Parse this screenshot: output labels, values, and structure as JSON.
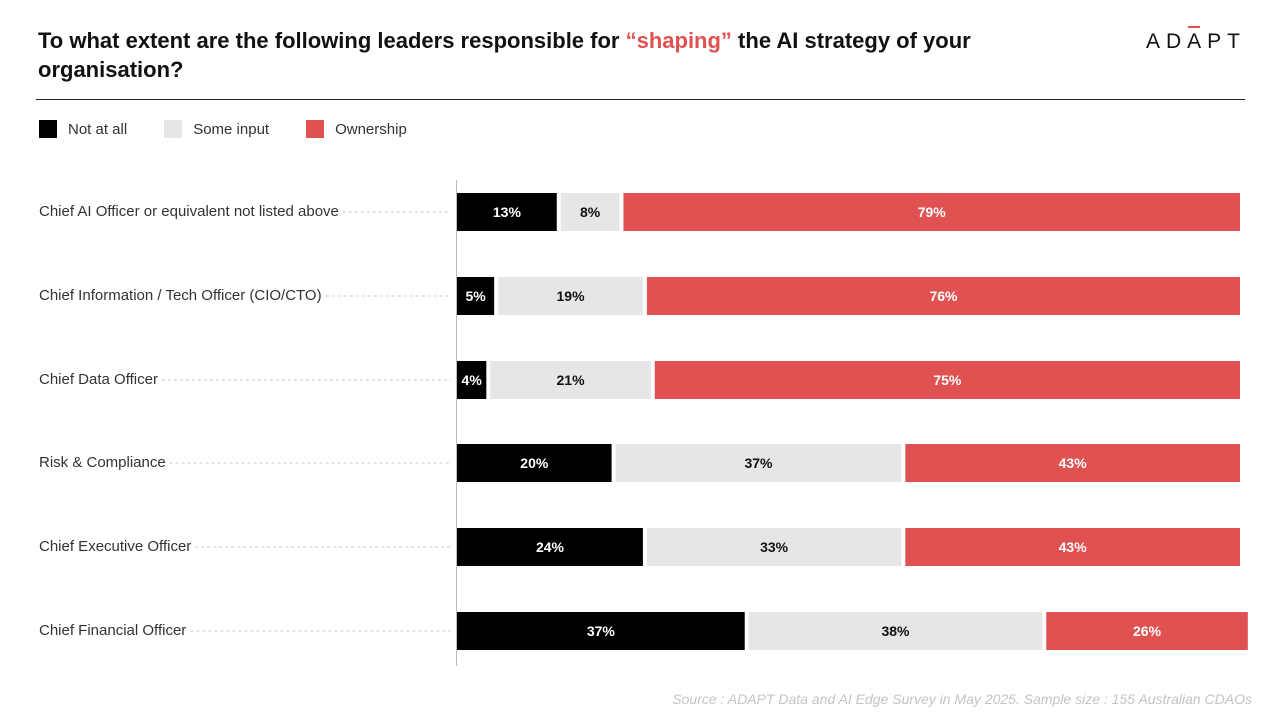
{
  "header": {
    "title_part1": "To what extent are the following leaders responsible for ",
    "title_highlight": "“shaping”",
    "title_part2": " the AI strategy of your organisation?",
    "logo": "ADAPT"
  },
  "colors": {
    "not_at_all": "#000000",
    "some_input": "#e6e6e6",
    "ownership": "#e05252"
  },
  "chart_data": {
    "type": "bar",
    "orientation": "horizontal",
    "stacked": true,
    "categories": [
      "Chief AI Officer or equivalent not listed above",
      "Chief Information / Tech Officer (CIO/CTO)",
      "Chief Data Officer",
      "Risk & Compliance",
      "Chief Executive Officer",
      "Chief Financial Officer"
    ],
    "series": [
      {
        "name": "Not at all",
        "color": "#000000",
        "text_color": "#ffffff",
        "values": [
          13,
          5,
          4,
          20,
          24,
          37
        ]
      },
      {
        "name": "Some input",
        "color": "#e6e6e6",
        "text_color": "#111111",
        "values": [
          8,
          19,
          21,
          37,
          33,
          38
        ]
      },
      {
        "name": "Ownership",
        "color": "#e05252",
        "text_color": "#ffffff",
        "values": [
          79,
          76,
          75,
          43,
          43,
          26
        ]
      }
    ],
    "xlim": [
      0,
      100
    ],
    "unit": "%",
    "legend_position": "top-left",
    "grid": false
  },
  "footer": {
    "source": "Source : ADAPT Data and AI Edge Survey in May 2025. Sample size : 155 Australian CDAOs"
  }
}
